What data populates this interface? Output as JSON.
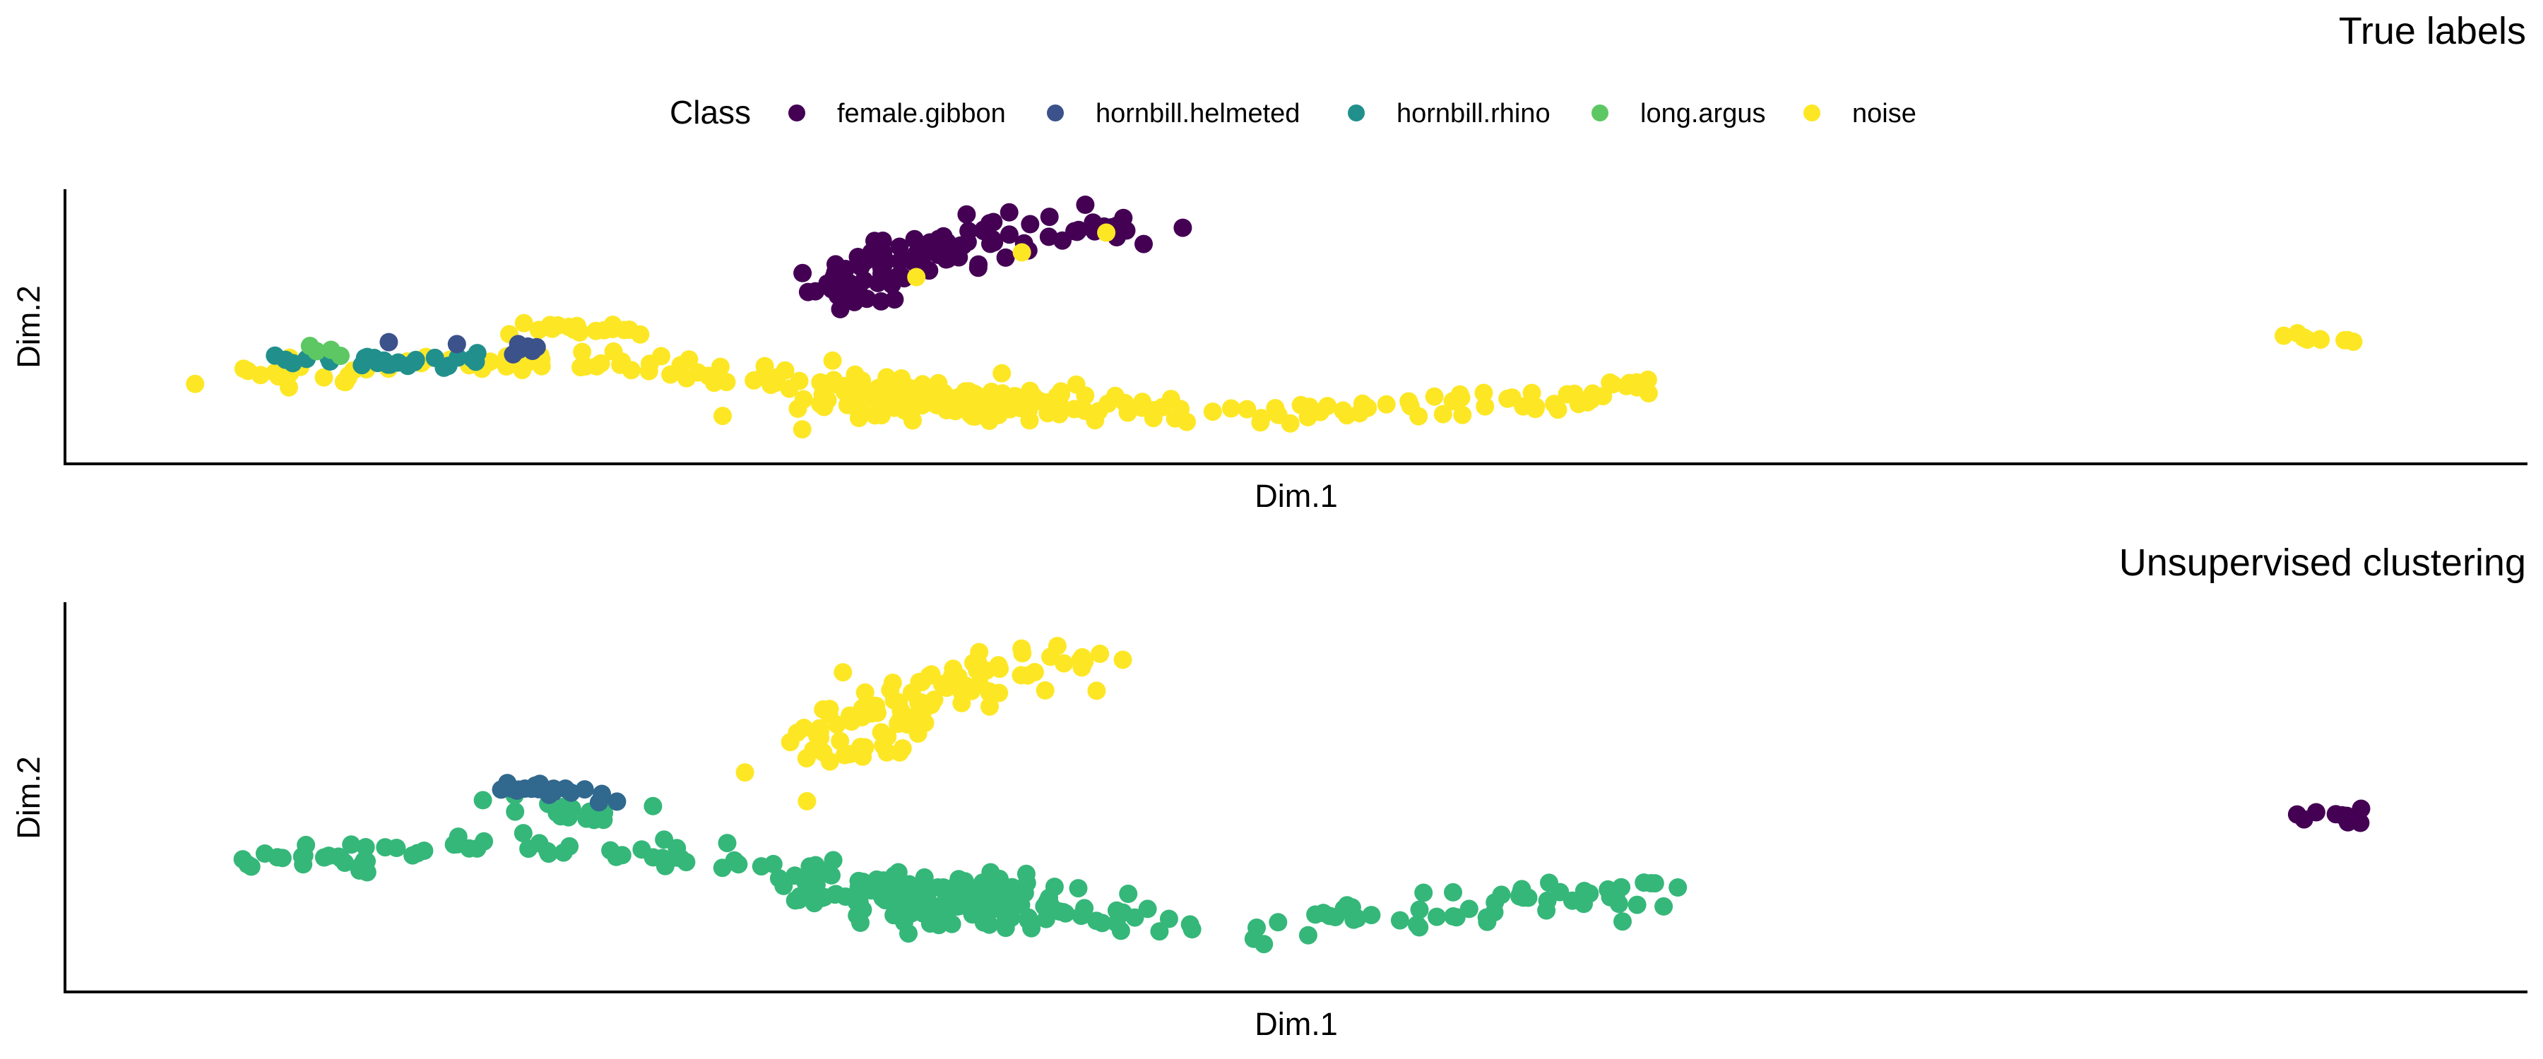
{
  "legend": {
    "title": "Class",
    "entries": [
      {
        "name": "female.gibbon",
        "color": "#440154"
      },
      {
        "name": "hornbill.helmeted",
        "color": "#3B528B"
      },
      {
        "name": "hornbill.rhino",
        "color": "#21908C"
      },
      {
        "name": "long.argus",
        "color": "#5DC863"
      },
      {
        "name": "noise",
        "color": "#FDE725"
      }
    ]
  },
  "cluster_colors": {
    "c1": "#440154",
    "c2": "#31688E",
    "c3": "#35B779",
    "c4": "#FDE725"
  },
  "chart_data": [
    {
      "type": "scatter",
      "title": "True labels",
      "xlabel": "Dim.1",
      "ylabel": "Dim.2",
      "color_by": "Class",
      "grid": false,
      "legend_position": "top",
      "xlim": [
        0,
        100
      ],
      "ylim": [
        0,
        100
      ],
      "clusters": [
        {
          "class": "noise",
          "shape": "band",
          "points": [
            [
              5,
              33
            ],
            [
              10,
              30
            ],
            [
              15,
              38
            ],
            [
              20,
              34
            ],
            [
              25,
              37
            ],
            [
              30,
              30
            ],
            [
              35,
              26
            ],
            [
              40,
              22
            ],
            [
              45,
              17
            ],
            [
              50,
              16
            ],
            [
              55,
              15
            ],
            [
              60,
              16
            ],
            [
              65,
              19
            ],
            [
              70,
              22
            ],
            [
              73,
              26
            ]
          ],
          "spread": 1.8,
          "count": 170
        },
        {
          "class": "noise",
          "shape": "blob",
          "cx": 39,
          "cy": 20,
          "rx": 6,
          "ry": 8,
          "count": 130
        },
        {
          "class": "noise",
          "shape": "band",
          "points": [
            [
              18,
              52
            ],
            [
              21,
              50
            ],
            [
              25,
              50
            ]
          ],
          "spread": 1.4,
          "count": 18
        },
        {
          "class": "noise",
          "shape": "band",
          "points": [
            [
              103,
              46
            ],
            [
              106,
              45
            ]
          ],
          "spread": 1.0,
          "count": 10
        },
        {
          "class": "female.gibbon",
          "shape": "band",
          "points": [
            [
              34,
              62
            ],
            [
              37,
              76
            ],
            [
              41,
              86
            ],
            [
              45,
              89
            ],
            [
              48,
              89
            ]
          ],
          "spread": 2.6,
          "count": 110
        },
        {
          "class": "hornbill.rhino",
          "shape": "band",
          "points": [
            [
              9,
              36
            ],
            [
              12,
              35
            ],
            [
              17,
              37
            ]
          ],
          "spread": 1.4,
          "count": 26
        },
        {
          "class": "hornbill.helmeted",
          "shape": "band",
          "points": [
            [
              12,
              47
            ],
            [
              16,
              42
            ],
            [
              20,
              41
            ]
          ],
          "spread": 1.0,
          "count": 8
        },
        {
          "class": "long.argus",
          "shape": "band",
          "points": [
            [
              9,
              40
            ],
            [
              11,
              41
            ]
          ],
          "spread": 0.8,
          "count": 4
        },
        {
          "class": "noise",
          "shape": "points",
          "points": [
            [
              38,
              70
            ],
            [
              43,
              80
            ],
            [
              47,
              88
            ]
          ]
        }
      ]
    },
    {
      "type": "scatter",
      "title": "Unsupervised clustering",
      "xlabel": "Dim.1",
      "ylabel": "Dim.2",
      "grid": false,
      "xlim": [
        0,
        100
      ],
      "ylim": [
        0,
        100
      ],
      "clusters": [
        {
          "cluster": "c3",
          "shape": "band",
          "points": [
            [
              5,
              33
            ],
            [
              10,
              30
            ],
            [
              15,
              38
            ],
            [
              20,
              34
            ],
            [
              25,
              37
            ],
            [
              30,
              30
            ],
            [
              35,
              26
            ],
            [
              40,
              22
            ],
            [
              45,
              17
            ],
            [
              50,
              16
            ],
            [
              55,
              15
            ],
            [
              60,
              16
            ],
            [
              65,
              19
            ],
            [
              70,
              22
            ],
            [
              73,
              26
            ]
          ],
          "spread": 1.8,
          "count": 170
        },
        {
          "cluster": "c3",
          "shape": "blob",
          "cx": 39,
          "cy": 20,
          "rx": 6,
          "ry": 8,
          "count": 130
        },
        {
          "cluster": "c3",
          "shape": "band",
          "points": [
            [
              18,
              48
            ],
            [
              21,
              46
            ],
            [
              25,
              46
            ]
          ],
          "spread": 1.4,
          "count": 18
        },
        {
          "cluster": "c2",
          "shape": "band",
          "points": [
            [
              18,
              53
            ],
            [
              21,
              52
            ],
            [
              24,
              49
            ]
          ],
          "spread": 0.9,
          "count": 20
        },
        {
          "cluster": "c4",
          "shape": "band",
          "points": [
            [
              34,
              62
            ],
            [
              37,
              76
            ],
            [
              41,
              86
            ],
            [
              45,
              89
            ],
            [
              48,
              89
            ]
          ],
          "spread": 2.6,
          "count": 110
        },
        {
          "cluster": "c1",
          "shape": "band",
          "points": [
            [
              103,
              46
            ],
            [
              106,
              45
            ]
          ],
          "spread": 1.0,
          "count": 10
        }
      ]
    }
  ]
}
